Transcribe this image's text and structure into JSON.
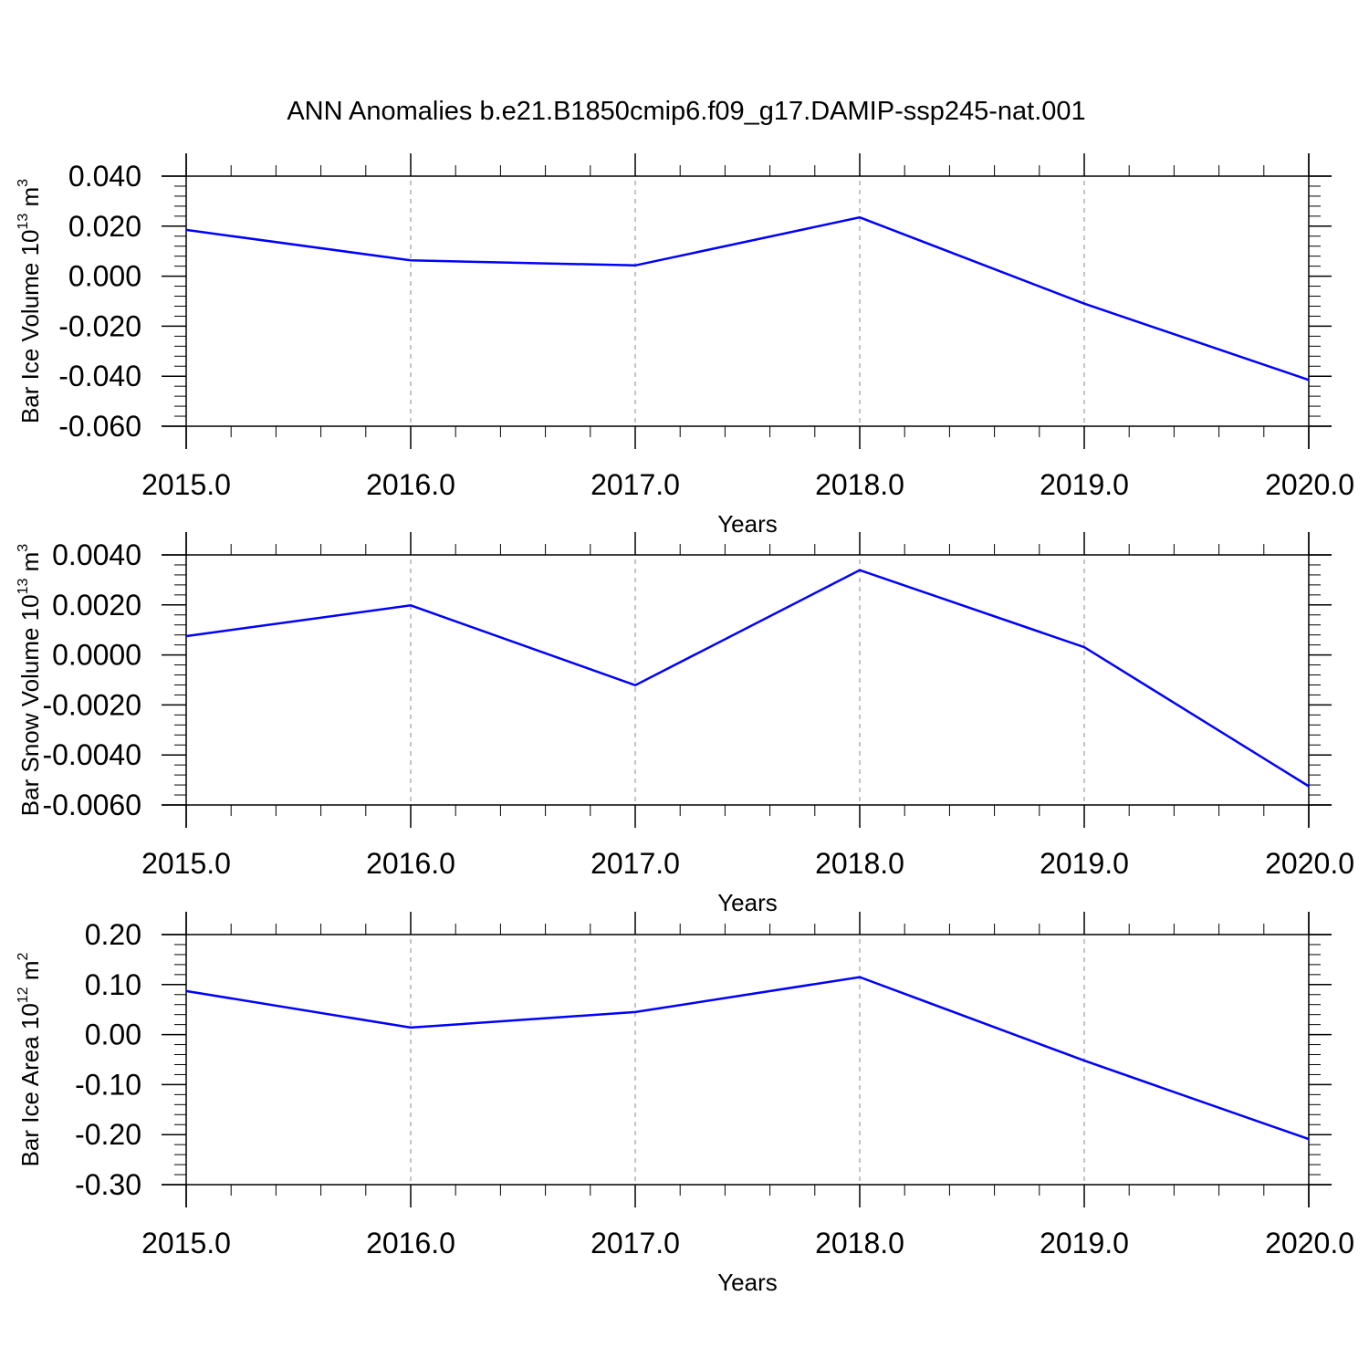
{
  "page": {
    "title": "ANN Anomalies b.e21.B1850cmip6.f09_g17.DAMIP-ssp245-nat.001"
  },
  "colors": {
    "line": "#0000ff",
    "axis": "#000000",
    "grid": "#888888"
  },
  "chart_data": [
    {
      "type": "line",
      "title": "",
      "xlabel": "Years",
      "ylabel": {
        "text": "Bar Ice Volume 10",
        "exponent": "13",
        "unit": " m",
        "unit_exponent": "3"
      },
      "x": [
        2015,
        2016,
        2017,
        2018,
        2019,
        2020
      ],
      "x_tick_labels": [
        "2015.0",
        "2016.0",
        "2017.0",
        "2018.0",
        "2019.0",
        "2020.0"
      ],
      "series": [
        {
          "values": [
            0.0185,
            0.0063,
            0.0043,
            0.0235,
            -0.011,
            -0.0415
          ]
        }
      ],
      "y_ticks": [
        0.04,
        0.02,
        0.0,
        -0.02,
        -0.04,
        -0.06
      ],
      "y_tick_labels": [
        "0.040",
        "0.020",
        "0.000",
        "-0.020",
        "-0.040",
        "-0.060"
      ],
      "xlim": [
        2015,
        2020.1
      ],
      "ylim": [
        -0.06,
        0.04
      ],
      "grid": "vertical-dashed"
    },
    {
      "type": "line",
      "title": "",
      "xlabel": "Years",
      "ylabel": {
        "text": "Bar Snow Volume 10",
        "exponent": "13",
        "unit": " m",
        "unit_exponent": "3"
      },
      "x": [
        2015,
        2016,
        2017,
        2018,
        2019,
        2020
      ],
      "x_tick_labels": [
        "2015.0",
        "2016.0",
        "2017.0",
        "2018.0",
        "2019.0",
        "2020.0"
      ],
      "series": [
        {
          "values": [
            0.00075,
            0.00198,
            -0.00121,
            0.00339,
            0.00031,
            -0.00525
          ]
        }
      ],
      "y_ticks": [
        0.004,
        0.002,
        0.0,
        -0.002,
        -0.004,
        -0.006
      ],
      "y_tick_labels": [
        "0.0040",
        "0.0020",
        "0.0000",
        "-0.0020",
        "-0.0040",
        "-0.0060"
      ],
      "xlim": [
        2015,
        2020.1
      ],
      "ylim": [
        -0.006,
        0.004
      ],
      "grid": "vertical-dashed"
    },
    {
      "type": "line",
      "title": "",
      "xlabel": "Years",
      "ylabel": {
        "text": "Bar Ice Area 10",
        "exponent": "12",
        "unit": " m",
        "unit_exponent": "2"
      },
      "x": [
        2015,
        2016,
        2017,
        2018,
        2019,
        2020
      ],
      "x_tick_labels": [
        "2015.0",
        "2016.0",
        "2017.0",
        "2018.0",
        "2019.0",
        "2020.0"
      ],
      "series": [
        {
          "values": [
            0.087,
            0.014,
            0.045,
            0.115,
            -0.052,
            -0.209
          ]
        }
      ],
      "y_ticks": [
        0.2,
        0.1,
        0.0,
        -0.1,
        -0.2,
        -0.3
      ],
      "y_tick_labels": [
        "0.20",
        "0.10",
        "0.00",
        "-0.10",
        "-0.20",
        "-0.30"
      ],
      "xlim": [
        2015,
        2020.1
      ],
      "ylim": [
        -0.3,
        0.2
      ],
      "grid": "vertical-dashed"
    }
  ]
}
